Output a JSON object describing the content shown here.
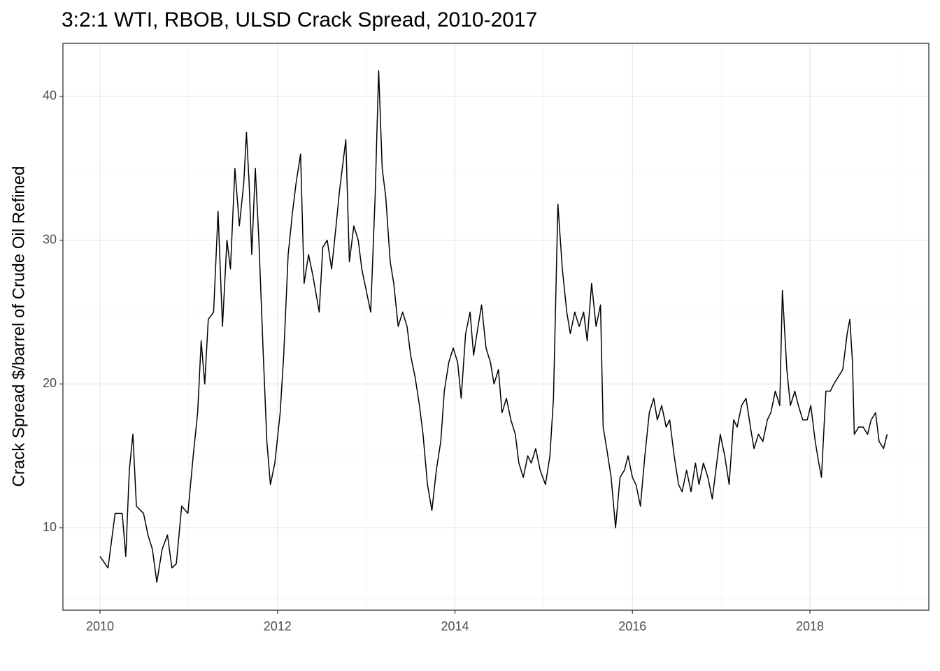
{
  "chart_data": {
    "type": "line",
    "title": "3:2:1 WTI, RBOB, ULSD Crack Spread, 2010-2017",
    "y_label": "Crack Spread $/barrel of Crude Oil Refined",
    "x": [
      2010.0,
      2010.09,
      2010.17,
      2010.25,
      2010.29,
      2010.33,
      2010.37,
      2010.41,
      2010.49,
      2010.54,
      2010.59,
      2010.64,
      2010.7,
      2010.76,
      2010.81,
      2010.86,
      2010.92,
      2010.99,
      2011.05,
      2011.1,
      2011.14,
      2011.18,
      2011.22,
      2011.28,
      2011.33,
      2011.38,
      2011.43,
      2011.47,
      2011.52,
      2011.57,
      2011.62,
      2011.65,
      2011.68,
      2011.71,
      2011.75,
      2011.79,
      2011.84,
      2011.88,
      2011.92,
      2011.97,
      2012.03,
      2012.07,
      2012.12,
      2012.17,
      2012.21,
      2012.26,
      2012.3,
      2012.35,
      2012.4,
      2012.47,
      2012.51,
      2012.56,
      2012.61,
      2012.66,
      2012.7,
      2012.77,
      2012.81,
      2012.86,
      2012.91,
      2012.95,
      2013.0,
      2013.05,
      2013.1,
      2013.14,
      2013.18,
      2013.22,
      2013.27,
      2013.31,
      2013.36,
      2013.41,
      2013.46,
      2013.5,
      2013.55,
      2013.6,
      2013.64,
      2013.69,
      2013.74,
      2013.79,
      2013.84,
      2013.88,
      2013.93,
      2013.98,
      2014.03,
      2014.07,
      2014.12,
      2014.17,
      2014.21,
      2014.26,
      2014.3,
      2014.35,
      2014.4,
      2014.44,
      2014.49,
      2014.53,
      2014.58,
      2014.63,
      2014.68,
      2014.72,
      2014.77,
      2014.82,
      2014.86,
      2014.91,
      2014.96,
      2015.02,
      2015.07,
      2015.11,
      2015.16,
      2015.21,
      2015.26,
      2015.3,
      2015.35,
      2015.4,
      2015.45,
      2015.49,
      2015.54,
      2015.59,
      2015.64,
      2015.67,
      2015.71,
      2015.76,
      2015.81,
      2015.86,
      2015.91,
      2015.95,
      2016.0,
      2016.04,
      2016.09,
      2016.14,
      2016.19,
      2016.24,
      2016.28,
      2016.33,
      2016.38,
      2016.42,
      2016.47,
      2016.52,
      2016.56,
      2016.61,
      2016.66,
      2016.71,
      2016.75,
      2016.8,
      2016.85,
      2016.9,
      2016.94,
      2016.99,
      2017.04,
      2017.09,
      2017.14,
      2017.18,
      2017.23,
      2017.28,
      2017.33,
      2017.37,
      2017.42,
      2017.47,
      2017.52,
      2017.56,
      2017.61,
      2017.66,
      2017.69,
      2017.74,
      2017.78,
      2017.83,
      2017.87,
      2017.92,
      2017.97,
      2018.01,
      2018.06,
      2018.1,
      2018.13,
      2018.18,
      2018.23,
      2018.27,
      2018.32,
      2018.37,
      2018.42,
      2018.45,
      2018.48,
      2018.5,
      2018.55,
      2018.6,
      2018.65,
      2018.69,
      2018.74,
      2018.78,
      2018.83,
      2018.87
    ],
    "y": [
      8,
      7.2,
      11,
      11,
      8,
      14,
      16.5,
      11.5,
      11,
      9.5,
      8.5,
      6.2,
      8.5,
      9.5,
      7.2,
      7.5,
      11.5,
      11,
      15,
      18,
      23,
      20,
      24.5,
      25,
      32,
      24,
      30,
      28,
      35,
      31,
      34,
      37.5,
      34,
      29,
      35,
      30,
      22,
      16,
      13,
      14.5,
      18,
      22,
      29,
      32,
      34,
      36,
      27,
      29,
      27.5,
      25,
      29.5,
      30,
      28,
      31,
      33.5,
      37,
      28.5,
      31,
      30,
      28,
      26.5,
      25,
      33,
      41.8,
      35,
      33,
      28.5,
      27,
      24,
      25,
      24,
      22,
      20.5,
      18.5,
      16.5,
      13,
      11.2,
      14,
      16,
      19.5,
      21.5,
      22.5,
      21.5,
      19,
      23.5,
      25,
      22,
      24,
      25.5,
      22.5,
      21.5,
      20,
      21,
      18,
      19,
      17.5,
      16.5,
      14.5,
      13.5,
      15,
      14.5,
      15.5,
      14,
      13,
      15,
      19,
      32.5,
      28,
      25,
      23.5,
      25,
      24,
      25,
      23,
      27,
      24,
      25.5,
      17,
      15.5,
      13.5,
      10,
      13.5,
      14,
      15,
      13.5,
      13,
      11.5,
      15,
      18,
      19,
      17.5,
      18.5,
      17,
      17.5,
      15,
      13,
      12.5,
      14,
      12.5,
      14.5,
      13,
      14.5,
      13.5,
      12,
      14,
      16.5,
      15,
      13,
      17.5,
      17,
      18.5,
      19,
      17,
      15.5,
      16.5,
      16,
      17.5,
      18,
      19.5,
      18.5,
      26.5,
      21,
      18.5,
      19.5,
      18.5,
      17.5,
      17.5,
      18.5,
      16,
      14.5,
      13.5,
      19.5,
      19.5,
      20,
      20.5,
      21,
      23.5,
      24.5,
      21.5,
      16.5,
      17,
      17,
      16.5,
      17.5,
      18,
      16,
      15.5,
      16.5
    ],
    "color": "#000000",
    "xlim": [
      2009.582,
      2019.34
    ],
    "xticks": [
      2010,
      2012,
      2014,
      2016,
      2018
    ],
    "xminorticks": [
      2011,
      2013,
      2015,
      2017,
      2019
    ],
    "ylim": [
      4.263,
      43.695
    ],
    "yticks": [
      10,
      20,
      30,
      40
    ],
    "yminorticks": [
      5,
      15,
      25,
      35
    ],
    "grid": true
  }
}
